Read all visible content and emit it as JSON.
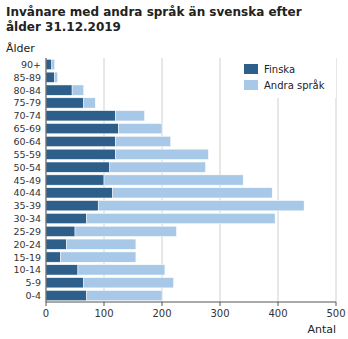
{
  "chart_data": {
    "type": "bar",
    "orientation": "horizontal",
    "stacked": true,
    "title": "Invånare med andra språk än svenska efter\nålder 31.12.2019",
    "x_label": "Antal",
    "y_label": "Ålder",
    "categories": [
      "90+",
      "85-89",
      "80-84",
      "75-79",
      "70-74",
      "65-69",
      "60-64",
      "55-59",
      "50-54",
      "45-49",
      "40-44",
      "35-39",
      "30-34",
      "25-29",
      "20-24",
      "15-19",
      "10-14",
      "5-9",
      "0-4"
    ],
    "series": [
      {
        "name": "Finska",
        "color": "#2E5F8A",
        "values": [
          10,
          15,
          45,
          65,
          120,
          125,
          120,
          120,
          110,
          100,
          115,
          90,
          70,
          50,
          35,
          25,
          55,
          65,
          70
        ]
      },
      {
        "name": "Andra språk",
        "color": "#A8C8E8",
        "values": [
          5,
          5,
          20,
          20,
          50,
          75,
          95,
          160,
          165,
          240,
          275,
          355,
          325,
          175,
          120,
          130,
          150,
          155,
          130
        ]
      }
    ],
    "xlim": [
      0,
      500
    ],
    "xticks": [
      0,
      100,
      200,
      300,
      400,
      500
    ],
    "grid": true,
    "legend": "upper right"
  }
}
